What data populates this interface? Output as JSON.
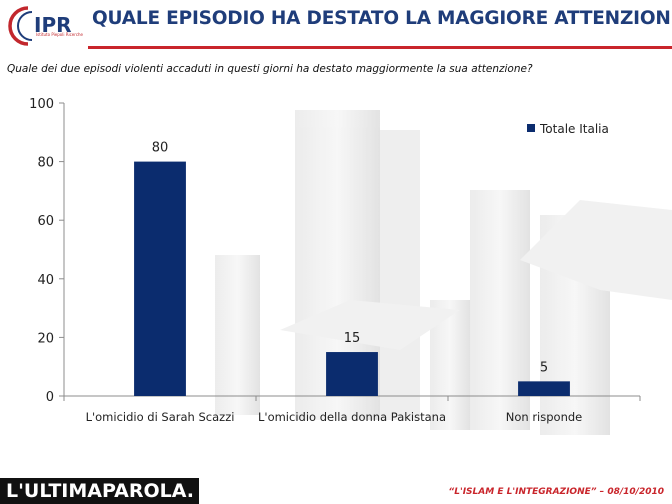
{
  "header": {
    "logo_text": "IPR",
    "logo_subtext": "Istituto Piepoli Ricerche",
    "title": "QUALE EPISODIO HA DESTATO LA  MAGGIORE ATTENZIONE?",
    "question": "Quale dei due episodi violenti accaduti in questi giorni ha destato maggiormente la sua attenzione?"
  },
  "chart_data": {
    "type": "bar",
    "categories": [
      "L'omicidio di Sarah Scazzi",
      "L'omicidio della donna Pakistana",
      "Non risponde"
    ],
    "series": [
      {
        "name": "Totale Italia",
        "values": [
          80,
          15,
          5
        ],
        "color": "#0b2c6e"
      }
    ],
    "data_labels": [
      "80",
      "15",
      "5"
    ],
    "yticks": [
      "0",
      "20",
      "40",
      "60",
      "80",
      "100"
    ],
    "ylim": [
      0,
      100
    ],
    "grid": false,
    "legend_position": "top-right"
  },
  "footer": {
    "brand": "L'ULTIMAPAROLA.",
    "caption": "“L'ISLAM E L'INTEGRAZIONE” – 08/10/2010"
  },
  "colors": {
    "title": "#1f3d7a",
    "accent_red": "#c9252b",
    "bar": "#0b2c6e"
  }
}
